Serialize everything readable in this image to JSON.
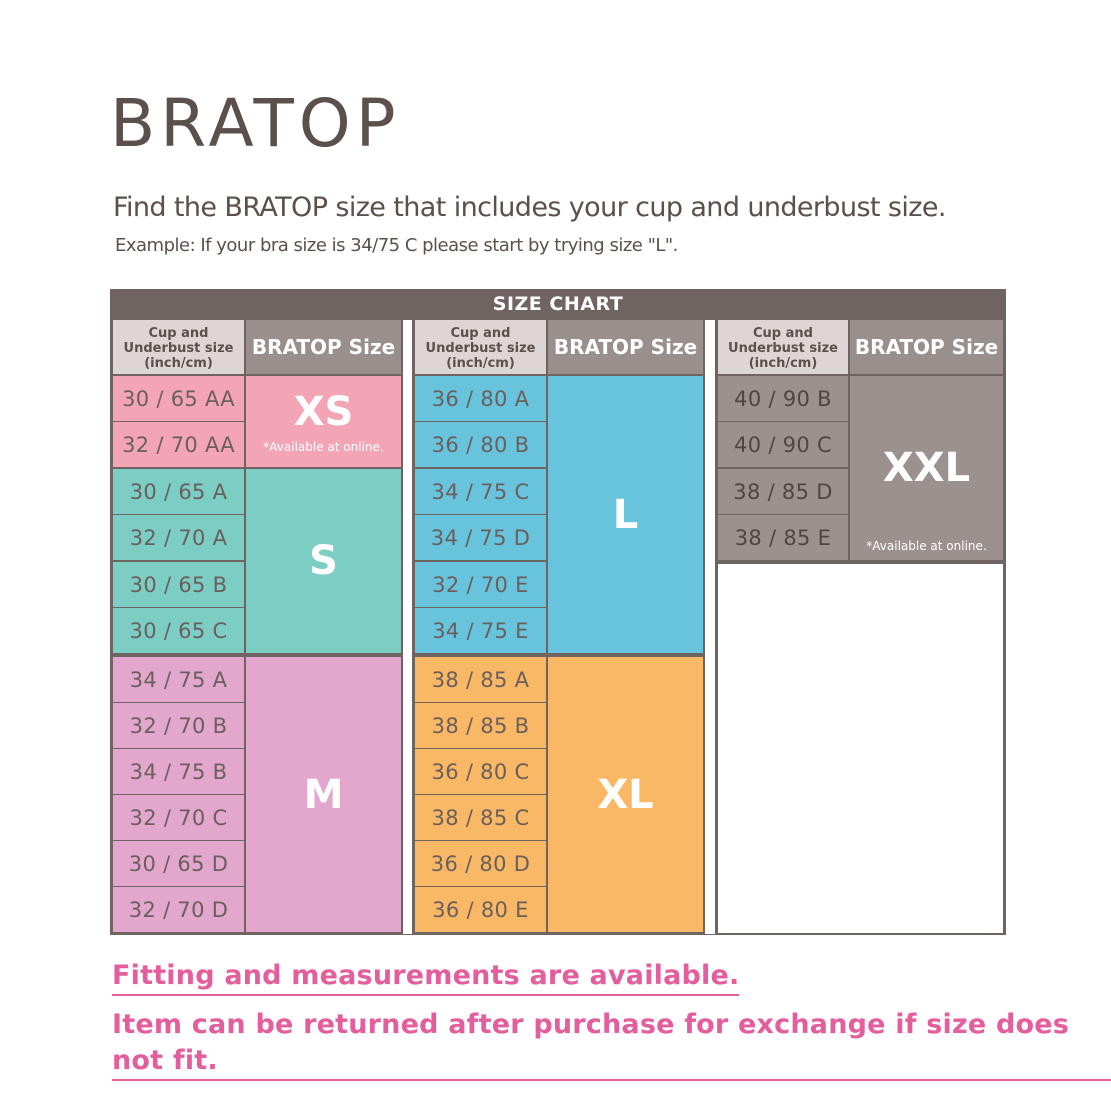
{
  "title": "BRATOP",
  "subtitle": "Find the BRATOP size that includes your cup and underbust size.",
  "example": "Example: If your bra size is 34/75 C please start by trying size \"L\".",
  "chart": {
    "header": "SIZE CHART",
    "cup_header": "Cup and\nUnderbust size\n(inch/cm)",
    "size_header": "BRATOP Size",
    "note": "*Available at online.",
    "colors": {
      "xs": "#f4a5b5",
      "s": "#7ccdc4",
      "m": "#e3a7cd",
      "l": "#67c4dc",
      "xl": "#f9b865",
      "xxl": "#9b918e",
      "frame": "#6f6461"
    },
    "groups": [
      {
        "size": "XS",
        "note": "*Available at online.",
        "cups": [
          "30 / 65 AA",
          "32 / 70 AA"
        ]
      },
      {
        "size": "S",
        "note": "",
        "cups": [
          "30 / 65 A",
          "32 / 70 A",
          "30 / 65 B",
          "30 / 65 C"
        ]
      },
      {
        "size": "M",
        "note": "",
        "cups": [
          "34 / 75 A",
          "32 / 70 B",
          "34 / 75 B",
          "32 / 70 C",
          "30 / 65 D",
          "32 / 70 D"
        ]
      },
      {
        "size": "L",
        "note": "",
        "cups": [
          "36 / 80 A",
          "36 / 80 B",
          "34 / 75 C",
          "34 / 75 D",
          "32 / 70 E",
          "34 / 75 E"
        ]
      },
      {
        "size": "XL",
        "note": "",
        "cups": [
          "38 / 85 A",
          "38 / 85 B",
          "36 / 80 C",
          "38 / 85 C",
          "36 / 80 D",
          "36 / 80 E"
        ]
      },
      {
        "size": "XXL",
        "note": "*Available at online.",
        "cups": [
          "40 / 90 B",
          "40 / 90 C",
          "38 / 85 D",
          "38 / 85 E"
        ]
      }
    ]
  },
  "footer": {
    "line1": "Fitting and measurements are available.",
    "line2": "Item can be returned after purchase for exchange if size does not fit."
  }
}
